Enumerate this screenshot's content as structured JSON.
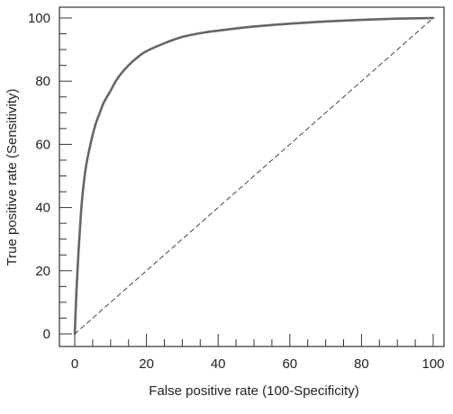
{
  "chart_data": {
    "type": "line",
    "title": "",
    "xlabel": "False positive rate (100-Specificity)",
    "ylabel": "True positive rate (Sensitivity)",
    "xlim": [
      0,
      100
    ],
    "ylim": [
      0,
      100
    ],
    "x_ticks": [
      "0",
      "20",
      "40",
      "60",
      "80",
      "100"
    ],
    "y_ticks": [
      "0",
      "20",
      "40",
      "60",
      "80",
      "100"
    ],
    "grid": false,
    "legend": "none",
    "series": [
      {
        "style": "solid",
        "color": "#666666",
        "x": [
          0,
          0.5,
          1,
          1.5,
          2,
          3,
          4,
          5,
          6,
          7,
          8,
          10,
          12,
          15,
          18,
          20,
          25,
          30,
          35,
          40,
          50,
          60,
          70,
          80,
          90,
          100
        ],
        "y": [
          0,
          14,
          25,
          34,
          42,
          52,
          58,
          63,
          67,
          70,
          73,
          77,
          81,
          85,
          88,
          89.5,
          92,
          94,
          95.2,
          96,
          97.3,
          98.2,
          98.9,
          99.4,
          99.8,
          100
        ]
      },
      {
        "style": "dashed",
        "color": "#444444",
        "x": [
          0,
          100
        ],
        "y": [
          0,
          100
        ]
      }
    ]
  }
}
